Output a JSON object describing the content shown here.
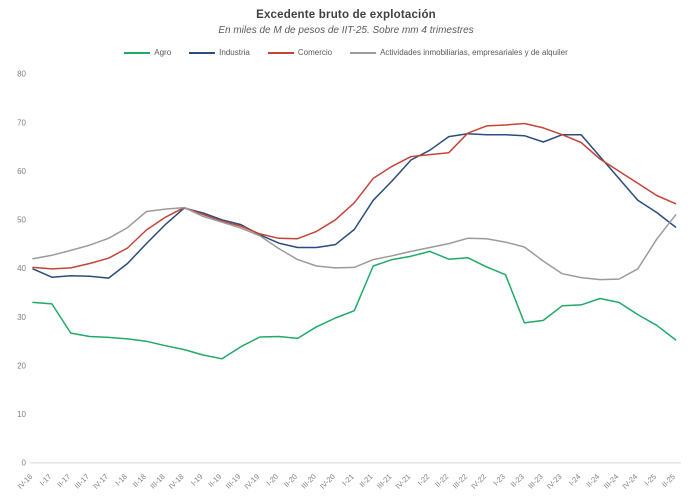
{
  "title": "Excedente bruto de explotación",
  "subtitle": "En miles de M de pesos de IIT-25. Sobre mm 4 trimestres",
  "colors": {
    "title_text": "#3f3f3f",
    "subtitle_text": "#5a5a5a",
    "axis_label_text": "#7f7f7f",
    "axis_line": "#d9d9d9",
    "agro": "#1fab67",
    "industria": "#2a4d7d",
    "comercio": "#c7433a",
    "actividades": "#9b9b9b"
  },
  "chart_data": {
    "type": "line",
    "title": "Excedente bruto de explotación",
    "subtitle": "En miles de M de pesos de IIT-25. Sobre mm 4 trimestres",
    "xlabel": "",
    "ylabel": "",
    "ylim": [
      0,
      80
    ],
    "yticks": [
      0,
      10,
      20,
      30,
      40,
      50,
      60,
      70,
      80
    ],
    "grid": false,
    "legend_position": "top",
    "categories": [
      "IV-16",
      "I-17",
      "II-17",
      "III-17",
      "IV-17",
      "I-18",
      "II-18",
      "III-18",
      "IV-18",
      "I-19",
      "II-19",
      "III-19",
      "IV-19",
      "I-20",
      "II-20",
      "III-20",
      "IV-20",
      "I-21",
      "II-21",
      "III-21",
      "IV-21",
      "I-22",
      "II-22",
      "III-22",
      "IV-22",
      "I-23",
      "II-23",
      "III-23",
      "IV-23",
      "I-24",
      "II-24",
      "III-24",
      "IV-24",
      "I-25",
      "II-25"
    ],
    "series": [
      {
        "name": "Agro",
        "color": "#1fab67",
        "values": [
          33,
          32.7,
          26.7,
          26,
          25.8,
          25.5,
          25,
          24.1,
          23.3,
          22.2,
          21.4,
          23.9,
          25.9,
          26,
          25.6,
          28,
          29.8,
          31.3,
          40.5,
          41.8,
          42.5,
          43.5,
          41.9,
          42.2,
          40.3,
          38.7,
          28.8,
          29.3,
          32.3,
          32.5,
          33.8,
          33,
          30.5,
          28.3,
          25.3
        ]
      },
      {
        "name": "Industria",
        "color": "#2a4d7d",
        "values": [
          39.9,
          38.2,
          38.5,
          38.4,
          38,
          41,
          45.1,
          49,
          52.4,
          51.4,
          50,
          49,
          46.9,
          45.2,
          44.3,
          44.3,
          44.9,
          48,
          54,
          58,
          62.3,
          64.3,
          67.1,
          67.7,
          67.5,
          67.5,
          67.3,
          66,
          67.5,
          67.5,
          63,
          58.5,
          54,
          51.5,
          48.5
        ]
      },
      {
        "name": "Comercio",
        "color": "#c7433a",
        "values": [
          40.2,
          39.9,
          40.1,
          41,
          42.1,
          44.2,
          47.9,
          50.5,
          52.5,
          51.1,
          49.7,
          48.7,
          47.1,
          46.2,
          46.1,
          47.6,
          50,
          53.5,
          58.5,
          61,
          63,
          63.4,
          63.8,
          67.8,
          69.3,
          69.5,
          69.8,
          68.9,
          67.5,
          65.9,
          62.5,
          60,
          57.5,
          55,
          53.3
        ]
      },
      {
        "name": "Actividades inmobiliarias, empresariales y de alquiler",
        "color": "#9b9b9b",
        "values": [
          42,
          42.7,
          43.7,
          44.8,
          46.2,
          48.4,
          51.7,
          52.2,
          52.5,
          50.7,
          49.5,
          48.3,
          46.7,
          44.1,
          41.8,
          40.5,
          40.1,
          40.2,
          41.8,
          42.6,
          43.5,
          44.3,
          45.1,
          46.2,
          46.1,
          45.4,
          44.4,
          41.5,
          38.9,
          38.1,
          37.7,
          37.8,
          39.9,
          46,
          51
        ]
      }
    ]
  }
}
